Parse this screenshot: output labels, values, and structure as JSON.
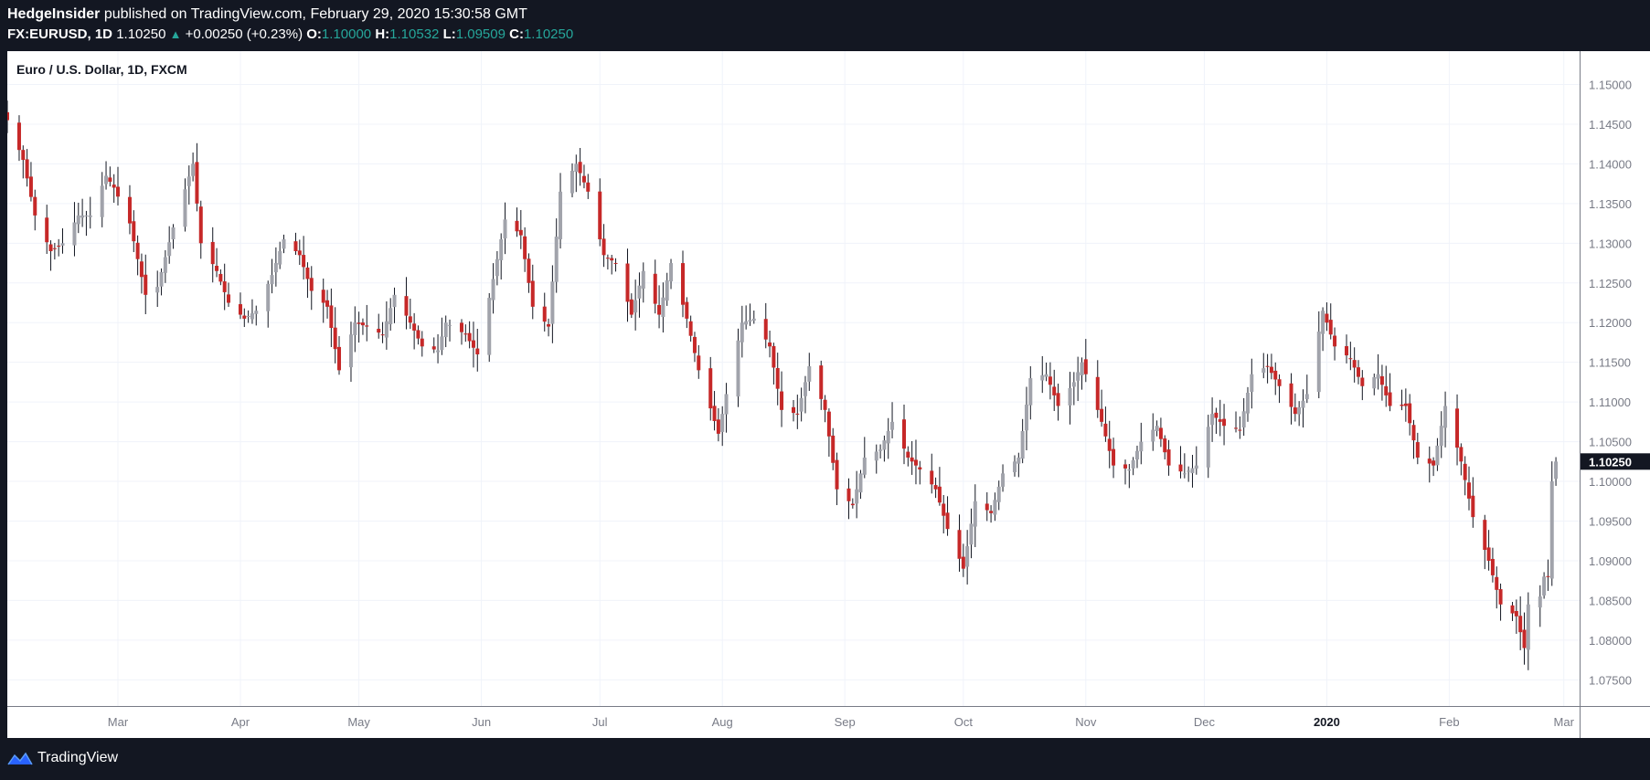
{
  "header": {
    "publisher": "HedgeInsider",
    "published_text": "published on TradingView.com, February 29, 2020 15:30:58 GMT",
    "symbol": "FX:EURUSD, 1D",
    "last": "1.10250",
    "change": "+0.00250 (+0.23%)",
    "o_label": "O:",
    "o_value": "1.10000",
    "h_label": "H:",
    "h_value": "1.10532",
    "l_label": "L:",
    "l_value": "1.09509",
    "c_label": "C:",
    "c_value": "1.10250"
  },
  "footer": {
    "brand": "TradingView",
    "logo_icon": "tradingview-logo-icon"
  },
  "colors": {
    "up": "#a1a3ab",
    "down": "#c62828",
    "grid": "#f0f3fa",
    "axis": "#787b86",
    "price_tag": "#131722"
  },
  "chart_data": {
    "type": "candlestick",
    "title": "Euro / U.S. Dollar, 1D, FXCM",
    "ylim": [
      1.0717,
      1.1542
    ],
    "y_ticks": [
      "1.07500",
      "1.08000",
      "1.08500",
      "1.09000",
      "1.09500",
      "1.10000",
      "1.10500",
      "1.11000",
      "1.11500",
      "1.12000",
      "1.12500",
      "1.13000",
      "1.13500",
      "1.14000",
      "1.14500",
      "1.15000"
    ],
    "x_ticks": [
      {
        "label": "Mar",
        "date": "2019-03-01"
      },
      {
        "label": "Apr",
        "date": "2019-04-01"
      },
      {
        "label": "May",
        "date": "2019-05-01"
      },
      {
        "label": "Jun",
        "date": "2019-06-01"
      },
      {
        "label": "Jul",
        "date": "2019-07-01"
      },
      {
        "label": "Aug",
        "date": "2019-08-01"
      },
      {
        "label": "Sep",
        "date": "2019-09-01"
      },
      {
        "label": "Oct",
        "date": "2019-10-01"
      },
      {
        "label": "Nov",
        "date": "2019-11-01"
      },
      {
        "label": "Dec",
        "date": "2019-12-01"
      },
      {
        "label": "2020",
        "date": "2020-01-01",
        "bold": true
      },
      {
        "label": "Feb",
        "date": "2020-02-01"
      },
      {
        "label": "Mar",
        "date": "2020-03-01"
      }
    ],
    "x_range": [
      "2019-02-01",
      "2020-03-05"
    ],
    "last_price_label": "1.10250",
    "last_price": 1.1025,
    "anchors": [
      [
        "2019-02-01",
        1.1455
      ],
      [
        "2019-02-05",
        1.1405
      ],
      [
        "2019-02-08",
        1.1335
      ],
      [
        "2019-02-12",
        1.129
      ],
      [
        "2019-02-15",
        1.13
      ],
      [
        "2019-02-19",
        1.1335
      ],
      [
        "2019-02-22",
        1.1335
      ],
      [
        "2019-02-26",
        1.1385
      ],
      [
        "2019-02-28",
        1.137
      ],
      [
        "2019-03-04",
        1.1325
      ],
      [
        "2019-03-08",
        1.1235
      ],
      [
        "2019-03-11",
        1.1245
      ],
      [
        "2019-03-15",
        1.132
      ],
      [
        "2019-03-20",
        1.14
      ],
      [
        "2019-03-22",
        1.13
      ],
      [
        "2019-03-26",
        1.1265
      ],
      [
        "2019-03-29",
        1.1225
      ],
      [
        "2019-04-02",
        1.1205
      ],
      [
        "2019-04-05",
        1.1215
      ],
      [
        "2019-04-09",
        1.126
      ],
      [
        "2019-04-12",
        1.1305
      ],
      [
        "2019-04-16",
        1.1285
      ],
      [
        "2019-04-19",
        1.124
      ],
      [
        "2019-04-23",
        1.122
      ],
      [
        "2019-04-26",
        1.114
      ],
      [
        "2019-04-30",
        1.12
      ],
      [
        "2019-05-03",
        1.1195
      ],
      [
        "2019-05-07",
        1.1185
      ],
      [
        "2019-05-10",
        1.1235
      ],
      [
        "2019-05-14",
        1.12
      ],
      [
        "2019-05-17",
        1.117
      ],
      [
        "2019-05-21",
        1.1165
      ],
      [
        "2019-05-23",
        1.12
      ],
      [
        "2019-05-28",
        1.1185
      ],
      [
        "2019-05-31",
        1.116
      ],
      [
        "2019-06-04",
        1.1255
      ],
      [
        "2019-06-07",
        1.133
      ],
      [
        "2019-06-11",
        1.131
      ],
      [
        "2019-06-14",
        1.122
      ],
      [
        "2019-06-18",
        1.1195
      ],
      [
        "2019-06-21",
        1.1365
      ],
      [
        "2019-06-25",
        1.14
      ],
      [
        "2019-06-28",
        1.1365
      ],
      [
        "2019-07-02",
        1.1285
      ],
      [
        "2019-07-05",
        1.1275
      ],
      [
        "2019-07-09",
        1.121
      ],
      [
        "2019-07-12",
        1.1265
      ],
      [
        "2019-07-16",
        1.121
      ],
      [
        "2019-07-19",
        1.1275
      ],
      [
        "2019-07-23",
        1.1205
      ],
      [
        "2019-07-26",
        1.114
      ],
      [
        "2019-07-31",
        1.106
      ],
      [
        "2019-08-02",
        1.111
      ],
      [
        "2019-08-06",
        1.12
      ],
      [
        "2019-08-09",
        1.1205
      ],
      [
        "2019-08-13",
        1.117
      ],
      [
        "2019-08-16",
        1.109
      ],
      [
        "2019-08-20",
        1.1085
      ],
      [
        "2019-08-23",
        1.1145
      ],
      [
        "2019-08-27",
        1.109
      ],
      [
        "2019-08-30",
        1.099
      ],
      [
        "2019-09-03",
        1.097
      ],
      [
        "2019-09-06",
        1.103
      ],
      [
        "2019-09-10",
        1.104
      ],
      [
        "2019-09-13",
        1.1075
      ],
      [
        "2019-09-17",
        1.103
      ],
      [
        "2019-09-20",
        1.1015
      ],
      [
        "2019-09-24",
        1.099
      ],
      [
        "2019-09-27",
        1.094
      ],
      [
        "2019-10-01",
        1.089
      ],
      [
        "2019-10-04",
        1.0975
      ],
      [
        "2019-10-08",
        1.096
      ],
      [
        "2019-10-11",
        1.101
      ],
      [
        "2019-10-15",
        1.103
      ],
      [
        "2019-10-18",
        1.113
      ],
      [
        "2019-10-22",
        1.1135
      ],
      [
        "2019-10-25",
        1.1095
      ],
      [
        "2019-10-29",
        1.1125
      ],
      [
        "2019-10-31",
        1.115
      ],
      [
        "2019-11-05",
        1.1075
      ],
      [
        "2019-11-08",
        1.102
      ],
      [
        "2019-11-12",
        1.1015
      ],
      [
        "2019-11-15",
        1.105
      ],
      [
        "2019-11-19",
        1.107
      ],
      [
        "2019-11-22",
        1.102
      ],
      [
        "2019-11-26",
        1.101
      ],
      [
        "2019-11-29",
        1.102
      ],
      [
        "2019-12-03",
        1.1085
      ],
      [
        "2019-12-06",
        1.107
      ],
      [
        "2019-12-10",
        1.1065
      ],
      [
        "2019-12-13",
        1.1135
      ],
      [
        "2019-12-17",
        1.1145
      ],
      [
        "2019-12-20",
        1.112
      ],
      [
        "2019-12-24",
        1.1085
      ],
      [
        "2019-12-27",
        1.111
      ],
      [
        "2019-12-31",
        1.1215
      ],
      [
        "2020-01-03",
        1.117
      ],
      [
        "2020-01-07",
        1.1155
      ],
      [
        "2020-01-10",
        1.112
      ],
      [
        "2020-01-14",
        1.1135
      ],
      [
        "2020-01-17",
        1.1095
      ],
      [
        "2020-01-21",
        1.1095
      ],
      [
        "2020-01-24",
        1.103
      ],
      [
        "2020-01-28",
        1.102
      ],
      [
        "2020-01-31",
        1.1095
      ],
      [
        "2020-02-04",
        1.1025
      ],
      [
        "2020-02-07",
        1.0955
      ],
      [
        "2020-02-11",
        1.09
      ],
      [
        "2020-02-14",
        1.0845
      ],
      [
        "2020-02-18",
        1.083
      ],
      [
        "2020-02-20",
        1.079
      ],
      [
        "2020-02-21",
        1.0845
      ],
      [
        "2020-02-24",
        1.0855
      ],
      [
        "2020-02-25",
        1.088
      ],
      [
        "2020-02-26",
        1.088
      ],
      [
        "2020-02-27",
        1.1
      ],
      [
        "2020-02-28",
        1.1025
      ]
    ]
  }
}
